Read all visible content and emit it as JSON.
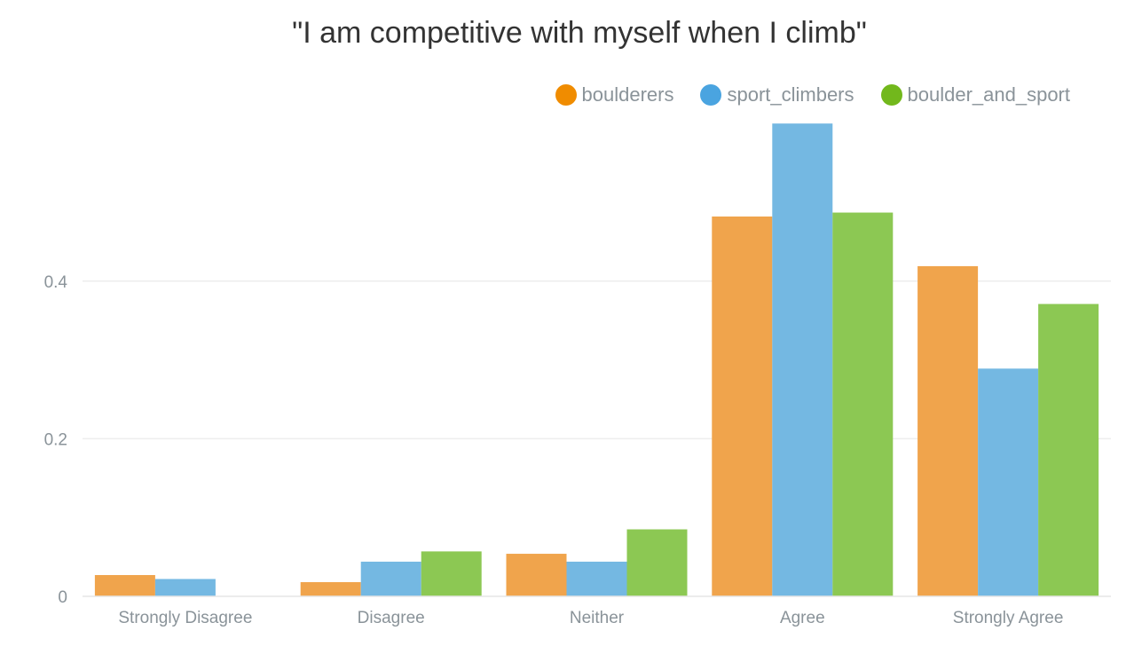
{
  "chart_data": {
    "type": "bar",
    "title": "\"I am competitive with myself when I climb\"",
    "xlabel": "",
    "ylabel": "",
    "categories": [
      "Strongly Disagree",
      "Disagree",
      "Neither",
      "Agree",
      "Strongly Agree"
    ],
    "series": [
      {
        "name": "boulderers",
        "color": "#f0a44c",
        "legend_color": "#f08c00",
        "values": [
          0.027,
          0.018,
          0.054,
          0.482,
          0.419
        ]
      },
      {
        "name": "sport_climbers",
        "color": "#74b8e2",
        "legend_color": "#4aa4e0",
        "values": [
          0.022,
          0.044,
          0.044,
          0.6,
          0.289
        ]
      },
      {
        "name": "boulder_and_sport",
        "color": "#8cc853",
        "legend_color": "#72b81c",
        "values": [
          0.0,
          0.057,
          0.085,
          0.487,
          0.371
        ]
      }
    ],
    "ylim": [
      0,
      0.6
    ],
    "yticks": [
      0,
      0.2,
      0.4
    ],
    "ytick_labels": [
      "0",
      "0.2",
      "0.4"
    ],
    "grid": true,
    "legend_position": "top-right"
  }
}
